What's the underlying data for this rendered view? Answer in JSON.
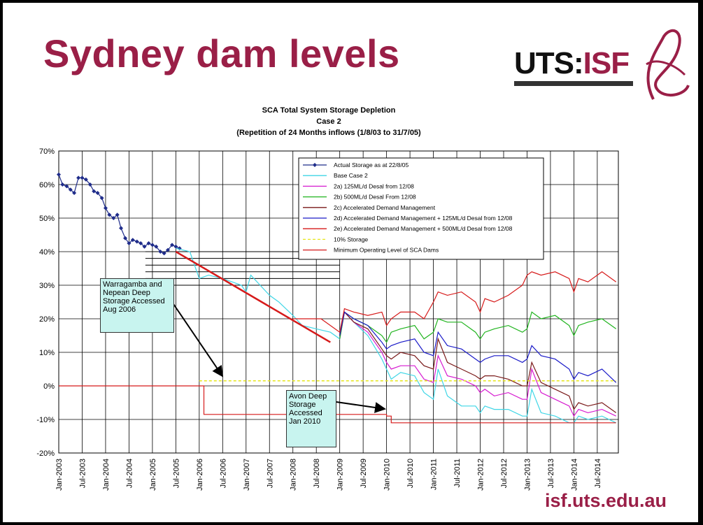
{
  "slide": {
    "title": "Sydney dam levels",
    "logo": {
      "left": "UTS:",
      "right": "ISF"
    },
    "url": "isf.uts.edu.au",
    "brand_color": "#9a1f47"
  },
  "annotations": [
    {
      "text": "Warragamba and Nepean Deep Storage Accessed Aug 2006"
    },
    {
      "text": "Avon Deep Storage Accessed Jan 2010"
    }
  ],
  "chart_data": {
    "type": "line",
    "title": [
      "SCA Total System Storage Depletion",
      "Case 2",
      "(Repetition of 24 Months inflows (1/8/03 to 31/7/05)"
    ],
    "ylim": [
      -20,
      70
    ],
    "yticks": [
      "70%",
      "60%",
      "50%",
      "40%",
      "30%",
      "20%",
      "10%",
      "0%",
      "-10%",
      "-20%"
    ],
    "ytick_values": [
      70,
      60,
      50,
      40,
      30,
      20,
      10,
      0,
      -10,
      -20
    ],
    "xlim": [
      2003.0,
      2014.95
    ],
    "xticks": [
      "Jan-2003",
      "Jul-2003",
      "Jan-2004",
      "Jul-2004",
      "Jan-2005",
      "Jul-2005",
      "Jan-2006",
      "Jul-2006",
      "Jan-2007",
      "Jul-2007",
      "Jan-2008",
      "Jul-2008",
      "Jan-2009",
      "Jul-2009",
      "Jan-2010",
      "Jul-2010",
      "Jan-2011",
      "Jul-2011",
      "Jan-2012",
      "Jul-2012",
      "Jan-2013",
      "Jul-2013",
      "Jan-2014",
      "Jul-2014"
    ],
    "grid": true,
    "legend_position": "top-right",
    "series": [
      {
        "name": "Actual Storage as at 22/8/05",
        "color": "#1f2c8a",
        "markers": true,
        "x": [
          2003.0,
          2003.08,
          2003.17,
          2003.25,
          2003.33,
          2003.42,
          2003.5,
          2003.58,
          2003.67,
          2003.75,
          2003.83,
          2003.92,
          2004.0,
          2004.08,
          2004.17,
          2004.25,
          2004.33,
          2004.42,
          2004.5,
          2004.58,
          2004.67,
          2004.75,
          2004.83,
          2004.92,
          2005.0,
          2005.08,
          2005.17,
          2005.25,
          2005.33,
          2005.42,
          2005.5,
          2005.58
        ],
        "y": [
          63,
          60,
          59.5,
          58.5,
          57.5,
          62,
          62,
          61.5,
          60,
          58,
          57.5,
          56,
          53,
          51,
          50,
          51,
          47,
          44,
          42.5,
          43.5,
          43,
          42.5,
          41.5,
          42.5,
          42,
          41.5,
          40,
          39.5,
          40.5,
          42,
          41.5,
          41
        ]
      },
      {
        "name": "Base Case 2",
        "color": "#3fd6e6",
        "x": [
          2005.5,
          2005.8,
          2006.0,
          2006.2,
          2006.5,
          2006.7,
          2006.9,
          2007.0,
          2007.1,
          2007.3,
          2007.5,
          2007.7,
          2008.0,
          2008.2,
          2008.5,
          2008.8,
          2009.0,
          2009.1,
          2009.3,
          2009.6,
          2009.9,
          2010.0,
          2010.1,
          2010.3,
          2010.6,
          2010.8,
          2011.0,
          2011.1,
          2011.3,
          2011.6,
          2011.9,
          2012.0,
          2012.1,
          2012.3,
          2012.6,
          2012.9,
          2013.0,
          2013.1,
          2013.3,
          2013.6,
          2013.9,
          2014.0,
          2014.1,
          2014.3,
          2014.6,
          2014.9
        ],
        "y": [
          41,
          40,
          32,
          33,
          32,
          31,
          30,
          28,
          33,
          30,
          27,
          25,
          21,
          18,
          17,
          16,
          14,
          22,
          19,
          15,
          8,
          5,
          2,
          4,
          3,
          -2,
          -4,
          5,
          -3,
          -6,
          -6,
          -8,
          -6,
          -7,
          -7,
          -9,
          -9,
          -1,
          -8,
          -9,
          -11,
          -11,
          -9,
          -10,
          -9,
          -11
        ]
      },
      {
        "name": "2a) 125ML/d Desal from 12/08",
        "color": "#d61ad0",
        "x": [
          2009.0,
          2009.1,
          2009.3,
          2009.6,
          2009.9,
          2010.0,
          2010.1,
          2010.3,
          2010.6,
          2010.8,
          2011.0,
          2011.1,
          2011.3,
          2011.6,
          2011.9,
          2012.0,
          2012.1,
          2012.3,
          2012.6,
          2012.9,
          2013.0,
          2013.1,
          2013.3,
          2013.6,
          2013.9,
          2014.0,
          2014.1,
          2014.3,
          2014.6,
          2014.9
        ],
        "y": [
          14,
          22,
          19,
          16,
          10,
          7,
          5,
          6,
          6,
          2,
          1,
          9,
          3,
          2,
          0,
          -2,
          -1,
          -3,
          -2,
          -4,
          -4,
          5,
          -2,
          -4,
          -6,
          -9,
          -7,
          -8,
          -7,
          -9
        ]
      },
      {
        "name": "2b) 500ML/d Desal From 12/08",
        "color": "#20b41e",
        "x": [
          2009.0,
          2009.1,
          2009.3,
          2009.6,
          2009.9,
          2010.0,
          2010.1,
          2010.3,
          2010.6,
          2010.8,
          2011.0,
          2011.1,
          2011.3,
          2011.6,
          2011.9,
          2012.0,
          2012.1,
          2012.3,
          2012.6,
          2012.9,
          2013.0,
          2013.1,
          2013.3,
          2013.6,
          2013.9,
          2014.0,
          2014.1,
          2014.3,
          2014.6,
          2014.9
        ],
        "y": [
          14,
          22,
          20,
          18,
          15,
          13,
          16,
          17,
          18,
          14,
          16,
          20,
          19,
          19,
          16,
          14,
          16,
          17,
          18,
          16,
          17,
          22,
          20,
          21,
          18,
          15,
          18,
          19,
          20,
          17
        ]
      },
      {
        "name": "2c) Accelerated Demand Management",
        "color": "#7a1a1a",
        "x": [
          2009.0,
          2009.1,
          2009.3,
          2009.6,
          2009.9,
          2010.0,
          2010.1,
          2010.3,
          2010.6,
          2010.8,
          2011.0,
          2011.1,
          2011.3,
          2011.6,
          2011.9,
          2012.0,
          2012.1,
          2012.3,
          2012.6,
          2012.9,
          2013.0,
          2013.1,
          2013.3,
          2013.6,
          2013.9,
          2014.0,
          2014.1,
          2014.3,
          2014.6,
          2014.9
        ],
        "y": [
          15,
          22,
          19,
          17,
          11,
          9,
          8,
          10,
          9,
          6,
          5,
          14,
          7,
          5,
          3,
          2,
          3,
          3,
          2,
          0,
          0,
          7,
          1,
          -1,
          -3,
          -7,
          -5,
          -6,
          -5,
          -8
        ]
      },
      {
        "name": "2d) Accelerated Demand Management + 125ML/d Desal from 12/08",
        "color": "#1a1ac8",
        "x": [
          2009.0,
          2009.1,
          2009.3,
          2009.6,
          2009.9,
          2010.0,
          2010.1,
          2010.3,
          2010.6,
          2010.8,
          2011.0,
          2011.1,
          2011.3,
          2011.6,
          2011.9,
          2012.0,
          2012.1,
          2012.3,
          2012.6,
          2012.9,
          2013.0,
          2013.1,
          2013.3,
          2013.6,
          2013.9,
          2014.0,
          2014.1,
          2014.3,
          2014.6,
          2014.9
        ],
        "y": [
          15,
          22,
          20,
          18,
          13,
          11,
          12,
          13,
          14,
          10,
          9,
          16,
          12,
          11,
          8,
          7,
          8,
          9,
          9,
          7,
          8,
          12,
          9,
          8,
          5,
          2,
          4,
          3,
          5,
          1
        ]
      },
      {
        "name": "2e) Accelerated Demand Management + 500ML/d Desal from 12/08",
        "color": "#d61a1a",
        "x": [
          2008.0,
          2008.3,
          2008.6,
          2009.0,
          2009.1,
          2009.3,
          2009.6,
          2009.9,
          2010.0,
          2010.1,
          2010.3,
          2010.6,
          2010.8,
          2011.0,
          2011.1,
          2011.3,
          2011.6,
          2011.9,
          2012.0,
          2012.1,
          2012.3,
          2012.6,
          2012.9,
          2013.0,
          2013.1,
          2013.3,
          2013.6,
          2013.9,
          2014.0,
          2014.1,
          2014.3,
          2014.6,
          2014.9
        ],
        "y": [
          20,
          20,
          20,
          16,
          23,
          22,
          21,
          22,
          18,
          20,
          22,
          22,
          20,
          25,
          28,
          27,
          28,
          25,
          22,
          26,
          25,
          27,
          30,
          33,
          34,
          33,
          34,
          32,
          28,
          32,
          31,
          34,
          31
        ]
      },
      {
        "name": "10% Storage",
        "color": "#e6e61a",
        "dashed": true,
        "x": [
          2006.0,
          2014.9
        ],
        "y": [
          1.5,
          1.5
        ]
      },
      {
        "name": "Minimum Operating Level of SCA Dams",
        "color": "#d61a1a",
        "x": [
          2003.0,
          2006.0,
          2006.0,
          2006.1,
          2006.1,
          2010.0,
          2010.0,
          2010.1,
          2010.1,
          2014.9
        ],
        "y": [
          0,
          0,
          0,
          0,
          -8.5,
          -8.5,
          -9,
          -9,
          -11,
          -11
        ]
      }
    ],
    "trend_line": {
      "color": "#d61a1a",
      "x": [
        2005.5,
        2008.8
      ],
      "y": [
        40,
        13
      ]
    }
  }
}
